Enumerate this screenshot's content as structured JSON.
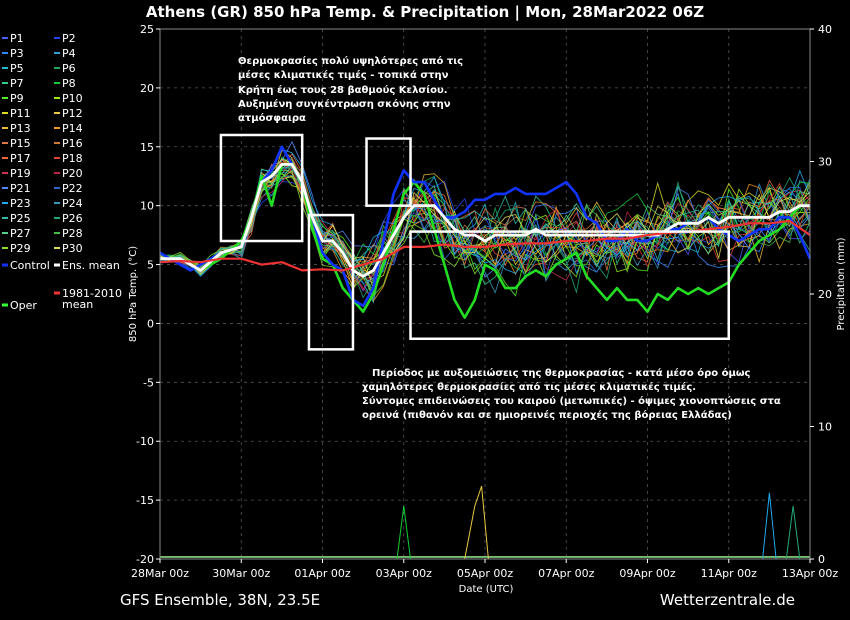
{
  "chart_data": {
    "type": "line",
    "title": "Athens  (GR)  850 hPa Temp. & Precipitation | Mon, 28Mar2022 06Z",
    "ylabel": "850 hPa Temp. (°C)",
    "y2label": "Precipitation (mm)",
    "xlabel": "Date (UTC)",
    "ylim": [
      -20,
      25
    ],
    "y2lim": [
      0,
      40
    ],
    "yticks": [
      25,
      20,
      15,
      10,
      5,
      0,
      -5,
      -10,
      -15,
      -20
    ],
    "y2ticks": [
      40,
      30,
      20,
      10,
      0
    ],
    "x_ticks": [
      "28Mar 00z",
      "30Mar 00z",
      "01Apr 00z",
      "03Apr 00z",
      "05Apr 00z",
      "07Apr 00z",
      "09Apr 00z",
      "11Apr 00z",
      "13Apr 00z"
    ],
    "x_range_hours": [
      0,
      384
    ],
    "grid": true,
    "legend_placement": "left",
    "legend": [
      {
        "label": "P1",
        "color": "#4d5cff"
      },
      {
        "label": "P2",
        "color": "#2244ee"
      },
      {
        "label": "P3",
        "color": "#3388ff"
      },
      {
        "label": "P4",
        "color": "#2f9fd8"
      },
      {
        "label": "P5",
        "color": "#22bbcc"
      },
      {
        "label": "P6",
        "color": "#22aa55"
      },
      {
        "label": "P7",
        "color": "#33cc88"
      },
      {
        "label": "P8",
        "color": "#11cc33"
      },
      {
        "label": "P9",
        "color": "#55ee22"
      },
      {
        "label": "P10",
        "color": "#99ee11"
      },
      {
        "label": "P11",
        "color": "#dddd22"
      },
      {
        "label": "P12",
        "color": "#e8c840"
      },
      {
        "label": "P13",
        "color": "#eebb33"
      },
      {
        "label": "P14",
        "color": "#ee9922"
      },
      {
        "label": "P15",
        "color": "#dd7744"
      },
      {
        "label": "P16",
        "color": "#cc7733"
      },
      {
        "label": "P17",
        "color": "#ee6633"
      },
      {
        "label": "P18",
        "color": "#dd4433"
      },
      {
        "label": "P19",
        "color": "#cc3355"
      },
      {
        "label": "P20",
        "color": "#bb2244"
      },
      {
        "label": "P21",
        "color": "#5588ff"
      },
      {
        "label": "P22",
        "color": "#3366cc"
      },
      {
        "label": "P23",
        "color": "#22aaee"
      },
      {
        "label": "P24",
        "color": "#3399bb"
      },
      {
        "label": "P25",
        "color": "#33bbaa"
      },
      {
        "label": "P26",
        "color": "#22aa77"
      },
      {
        "label": "P27",
        "color": "#55cc88"
      },
      {
        "label": "P28",
        "color": "#44bb44"
      },
      {
        "label": "P29",
        "color": "#88dd33"
      },
      {
        "label": "P30",
        "color": "#dddd55"
      },
      {
        "label": "Control",
        "color": "#1133ff"
      },
      {
        "label": "Ens. mean",
        "color": "#ffffff"
      },
      {
        "label": "1981-2010 mean",
        "color": "#ee3333"
      },
      {
        "label": "Oper",
        "color": "#33ff33"
      }
    ],
    "series": [
      {
        "name": "Oper",
        "color": "#22dd22",
        "width": 2.6,
        "x": [
          0,
          12,
          18,
          24,
          36,
          48,
          54,
          60,
          66,
          72,
          78,
          84,
          90,
          96,
          102,
          108,
          114,
          120,
          126,
          132,
          138,
          144,
          150,
          156,
          162,
          168,
          174,
          180,
          186,
          192,
          198,
          204,
          210,
          216,
          222,
          228,
          234,
          240,
          246,
          252,
          258,
          264,
          270,
          276,
          282,
          288,
          294,
          300,
          306,
          312,
          318,
          324,
          330,
          336,
          342,
          348,
          354,
          360,
          366,
          372,
          378,
          384
        ],
        "y": [
          5.5,
          5.5,
          5,
          4.5,
          5.5,
          7,
          9,
          12.5,
          10,
          13.5,
          13.5,
          12,
          8,
          5.5,
          5,
          3,
          2,
          1,
          2.5,
          5,
          8,
          11,
          12,
          11,
          8,
          5,
          2,
          0.5,
          2,
          5,
          4.5,
          3,
          3,
          4,
          4.5,
          4,
          5,
          5.5,
          6,
          4,
          3,
          2,
          3,
          2,
          2,
          1,
          2.5,
          2,
          3,
          2.5,
          3,
          2.5,
          3,
          3.5,
          5,
          6,
          7,
          7.5,
          8,
          9,
          10,
          10
        ]
      },
      {
        "name": "Control",
        "color": "#1133ff",
        "width": 2.6,
        "x": [
          0,
          12,
          18,
          24,
          36,
          48,
          54,
          60,
          66,
          72,
          78,
          84,
          90,
          96,
          102,
          108,
          114,
          120,
          126,
          132,
          138,
          144,
          150,
          156,
          162,
          168,
          174,
          180,
          186,
          192,
          198,
          204,
          210,
          216,
          222,
          228,
          234,
          240,
          246,
          252,
          258,
          264,
          270,
          276,
          282,
          288,
          294,
          300,
          306,
          312,
          318,
          324,
          330,
          336,
          342,
          348,
          354,
          360,
          366,
          372,
          378,
          384
        ],
        "y": [
          6,
          5,
          4.5,
          5,
          6,
          6.5,
          9,
          12,
          13,
          15,
          13.5,
          12,
          9,
          6,
          5,
          4.5,
          2,
          1.5,
          3,
          7,
          11,
          13,
          12,
          12,
          10.5,
          9,
          9,
          9.5,
          10.5,
          10.5,
          11,
          11,
          11.5,
          11,
          11,
          11,
          11.5,
          12,
          11,
          9,
          8.5,
          7,
          7,
          8,
          7,
          7,
          7.5,
          8,
          8,
          8.5,
          8.5,
          9,
          8,
          7.5,
          7,
          7.5,
          8,
          8,
          9,
          9,
          7.5,
          5.5
        ]
      },
      {
        "name": "Ens. mean",
        "color": "#ffffff",
        "width": 2.8,
        "x": [
          0,
          12,
          18,
          24,
          36,
          48,
          54,
          60,
          66,
          72,
          78,
          84,
          90,
          96,
          102,
          108,
          114,
          120,
          126,
          132,
          138,
          144,
          150,
          156,
          162,
          168,
          174,
          180,
          186,
          192,
          198,
          204,
          210,
          216,
          222,
          228,
          234,
          240,
          246,
          252,
          258,
          264,
          270,
          276,
          282,
          288,
          294,
          300,
          306,
          312,
          318,
          324,
          330,
          336,
          342,
          348,
          354,
          360,
          366,
          372,
          378,
          384
        ],
        "y": [
          5.5,
          5.5,
          5,
          4.5,
          6,
          6.5,
          9,
          12,
          12.5,
          13.5,
          13.5,
          12,
          9,
          7,
          7,
          6,
          4.5,
          4,
          4.5,
          6,
          7.5,
          9,
          10,
          10,
          10,
          9,
          8,
          7.5,
          7.5,
          7,
          7.5,
          7.5,
          7.5,
          7.5,
          8,
          7.5,
          7.5,
          7.5,
          7.5,
          7.5,
          7.5,
          7.5,
          7.5,
          7.5,
          7.5,
          7.5,
          7.5,
          8,
          8.5,
          8.5,
          8.5,
          9,
          8.5,
          9,
          9,
          9,
          9,
          9,
          9.5,
          9.5,
          10,
          10
        ]
      },
      {
        "name": "1981-2010 mean",
        "color": "#ee3333",
        "width": 2.2,
        "x": [
          0,
          12,
          24,
          36,
          48,
          60,
          72,
          84,
          96,
          108,
          120,
          132,
          144,
          156,
          168,
          180,
          192,
          204,
          216,
          228,
          240,
          252,
          264,
          276,
          288,
          300,
          312,
          324,
          336,
          348,
          360,
          372,
          384
        ],
        "y": [
          5.2,
          5.3,
          5.2,
          5.5,
          5.5,
          5,
          5.2,
          4.5,
          4.6,
          4.5,
          5,
          5.5,
          6.5,
          6.5,
          6.7,
          6.5,
          6.5,
          6.7,
          6.8,
          6.8,
          7,
          7,
          7.2,
          7.2,
          7.5,
          7.7,
          7.8,
          8,
          8.2,
          8.5,
          8.5,
          8.7,
          7.5
        ]
      }
    ],
    "precipitation": [
      {
        "name": "P12",
        "color": "#e8c840",
        "peaks": [
          [
            180,
            0
          ],
          [
            186,
            4
          ],
          [
            190,
            5.5
          ],
          [
            194,
            0
          ]
        ]
      },
      {
        "name": "P8",
        "color": "#11cc33",
        "peaks": [
          [
            140,
            0
          ],
          [
            144,
            4
          ],
          [
            148,
            0
          ]
        ]
      },
      {
        "name": "P23",
        "color": "#22aaee",
        "peaks": [
          [
            356,
            0
          ],
          [
            360,
            5
          ],
          [
            364,
            0
          ]
        ]
      },
      {
        "name": "P26",
        "color": "#22aa77",
        "peaks": [
          [
            370,
            0
          ],
          [
            374,
            4
          ],
          [
            378,
            0
          ]
        ]
      }
    ],
    "annotations": [
      "Θερμοκρασίες πολύ υψηλότερες από τις",
      "μέσες κλιματικές τιμές - τοπικά στην",
      "Κρήτη έως τους 28 βαθμούς Κελσίου.",
      "Αυξημένη συγκέντρωση σκόνης στην",
      "ατμόσφαιρα",
      "Περίοδος με αυξομειώσεις της θερμοκρασίας - κατά μέσο όρο όμως",
      "χαμηλότερες θερμοκρασίες από τις μέσες κλιματικές τιμές.",
      "Σύντομες επιδεινώσεις του καιρού (μετωπικές) - όψιμες χιονοπτώσεις στα",
      "ορεινά (πιθανόν και σε ημιορεινές περιοχές της βόρειας Ελλάδας)"
    ],
    "highlight_boxes": [
      {
        "x0": 36,
        "x1": 84,
        "y0": 7,
        "y1": 16
      },
      {
        "x0": 88,
        "x1": 114,
        "y0": -2.2,
        "y1": 9.2
      },
      {
        "x0": 122,
        "x1": 148,
        "y0": 10,
        "y1": 15.7
      },
      {
        "x0": 148,
        "x1": 336,
        "y0": -1.3,
        "y1": 7.8
      }
    ]
  },
  "footer": {
    "left": "GFS Ensemble, 38N, 23.5E",
    "right": "Wetterzentrale.de"
  }
}
